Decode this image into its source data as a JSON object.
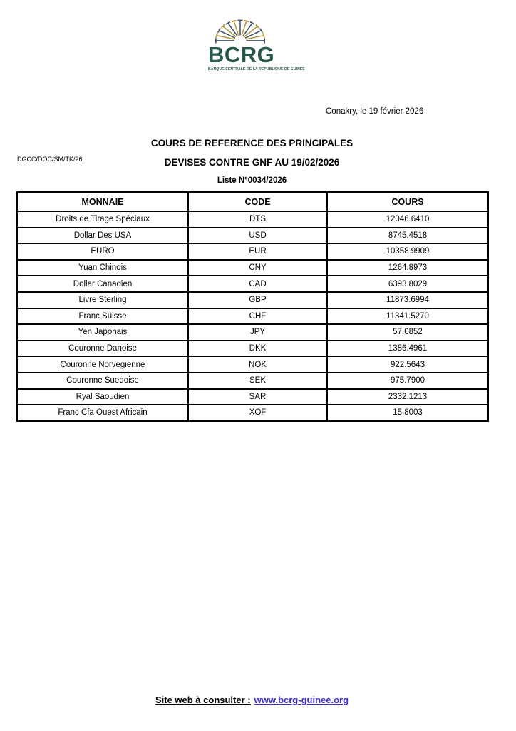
{
  "logo": {
    "acronym": "BCRG",
    "tagline": "BANQUE CENTRALE DE LA REPUBLIQUE DE GUINEE",
    "ray_count": 13,
    "colors": {
      "green": "#28584a",
      "ray_dark": "#3f5060",
      "ray_gold": "#b0973a"
    }
  },
  "header": {
    "date_line": "Conakry, le  19 février 2026",
    "reference": "DGCC/DOC/SM/TK/26",
    "title_line1": "COURS DE REFERENCE DES PRINCIPALES",
    "title_line2": "DEVISES CONTRE GNF AU  19/02/2026",
    "list_number": "Liste N°0034/2026"
  },
  "table": {
    "columns": [
      "MONNAIE",
      "CODE",
      "COURS"
    ],
    "rows": [
      [
        "Droits de Tirage Spéciaux",
        "DTS",
        "12046.6410"
      ],
      [
        "Dollar Des USA",
        "USD",
        "8745.4518"
      ],
      [
        "EURO",
        "EUR",
        "10358.9909"
      ],
      [
        "Yuan Chinois",
        "CNY",
        "1264.8973"
      ],
      [
        "Dollar Canadien",
        "CAD",
        "6393.8029"
      ],
      [
        "Livre Sterling",
        "GBP",
        "11873.6994"
      ],
      [
        "Franc Suisse",
        "CHF",
        "11341.5270"
      ],
      [
        "Yen Japonais",
        "JPY",
        "57.0852"
      ],
      [
        "Couronne Danoise",
        "DKK",
        "1386.4961"
      ],
      [
        "Couronne Norvegienne",
        "NOK",
        "922.5643"
      ],
      [
        "Couronne Suedoise",
        "SEK",
        "975.7900"
      ],
      [
        "Ryal Saoudien",
        "SAR",
        "2332.1213"
      ],
      [
        "Franc Cfa Ouest Africain",
        "XOF",
        "15.8003"
      ]
    ]
  },
  "footer": {
    "label": "Site web à consulter :",
    "link": "www.bcrg-guinee.org",
    "link_color": "#3a2dcb"
  }
}
